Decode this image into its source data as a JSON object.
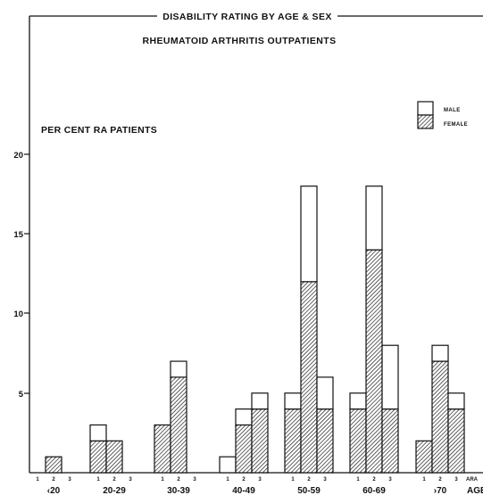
{
  "chart_data": {
    "type": "bar",
    "stacked": true,
    "title": "DISABILITY RATING BY AGE & SEX",
    "subtitle": "RHEUMATOID ARTHRITIS OUTPATIENTS",
    "ylabel": "PER CENT RA PATIENTS",
    "xlabel": "AGE",
    "subcategory_axis_label": "ARA",
    "ylim": [
      0,
      20
    ],
    "yticks": [
      "5",
      "10",
      "15",
      "20"
    ],
    "subcategories": [
      "1",
      "2",
      "3"
    ],
    "groups": [
      "‹20",
      "20-29",
      "30-39",
      "40-49",
      "50-59",
      "60-69",
      "›70"
    ],
    "legend": {
      "position": "top-right",
      "entries": [
        "MALE",
        "FEMALE"
      ]
    },
    "series": [
      {
        "name": "FEMALE",
        "pattern": "hatched",
        "values": [
          [
            0,
            1,
            0
          ],
          [
            2,
            2,
            0
          ],
          [
            3,
            6,
            0
          ],
          [
            0,
            3,
            4
          ],
          [
            4,
            12,
            4
          ],
          [
            4,
            14,
            4
          ],
          [
            2,
            7,
            4
          ]
        ]
      },
      {
        "name": "MALE",
        "pattern": "open",
        "values": [
          [
            0,
            0,
            0
          ],
          [
            1,
            0,
            0
          ],
          [
            0,
            1,
            0
          ],
          [
            1,
            1,
            1
          ],
          [
            1,
            6,
            2
          ],
          [
            1,
            4,
            4
          ],
          [
            0,
            1,
            1
          ]
        ]
      }
    ],
    "colors": {
      "ink": "#111111",
      "paper": "#ffffff"
    }
  }
}
